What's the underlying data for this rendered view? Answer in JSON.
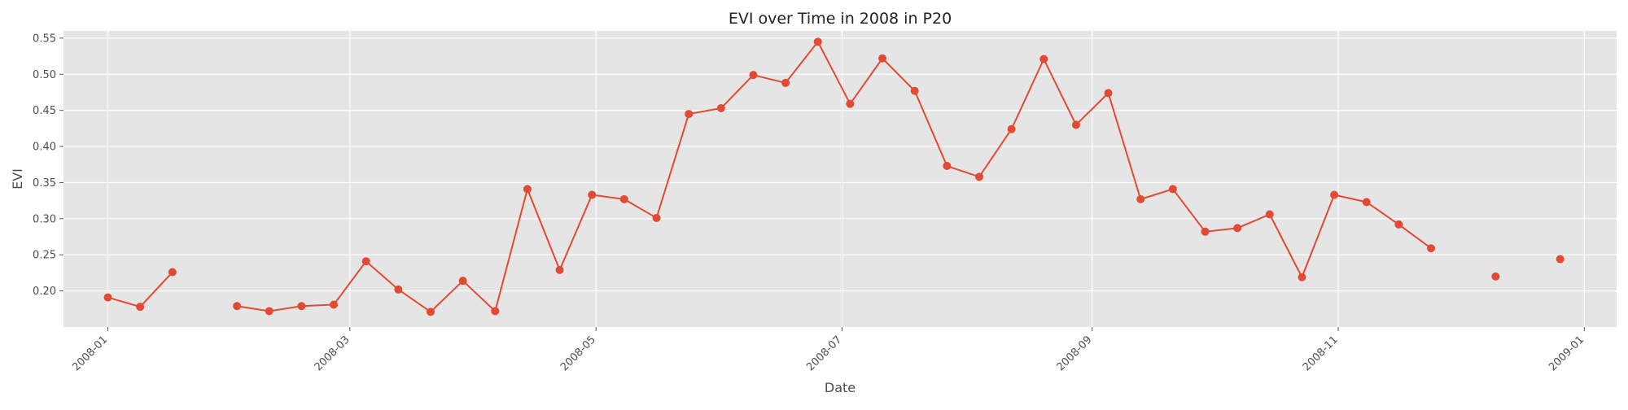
{
  "chart_data": {
    "type": "line",
    "title": "EVI over Time in 2008 in P20",
    "xlabel": "Date",
    "ylabel": "EVI",
    "grid": true,
    "xlim": [
      "2007-12-21",
      "2009-01-09"
    ],
    "ylim": [
      0.15,
      0.56
    ],
    "xticks": [
      "2008-01",
      "2008-03",
      "2008-05",
      "2008-07",
      "2008-09",
      "2008-11",
      "2009-01"
    ],
    "xtick_dates": [
      "2008-01-01",
      "2008-03-01",
      "2008-05-01",
      "2008-07-01",
      "2008-09-01",
      "2008-11-01",
      "2009-01-01"
    ],
    "yticks": [
      "0.20",
      "0.25",
      "0.30",
      "0.35",
      "0.40",
      "0.45",
      "0.50",
      "0.55"
    ],
    "series": [
      {
        "color": "#E24A33",
        "marker": "circle",
        "points": [
          {
            "date": "2008-01-01",
            "value": 0.191
          },
          {
            "date": "2008-01-09",
            "value": 0.178
          },
          {
            "date": "2008-01-17",
            "value": 0.226
          },
          {
            "date": "2008-01-25",
            "value": null
          },
          {
            "date": "2008-02-02",
            "value": 0.179
          },
          {
            "date": "2008-02-10",
            "value": 0.172
          },
          {
            "date": "2008-02-18",
            "value": 0.179
          },
          {
            "date": "2008-02-26",
            "value": 0.181
          },
          {
            "date": "2008-03-05",
            "value": 0.241
          },
          {
            "date": "2008-03-13",
            "value": 0.202
          },
          {
            "date": "2008-03-21",
            "value": 0.171
          },
          {
            "date": "2008-03-29",
            "value": 0.214
          },
          {
            "date": "2008-04-06",
            "value": 0.172
          },
          {
            "date": "2008-04-14",
            "value": 0.341
          },
          {
            "date": "2008-04-22",
            "value": 0.229
          },
          {
            "date": "2008-04-30",
            "value": 0.333
          },
          {
            "date": "2008-05-08",
            "value": 0.327
          },
          {
            "date": "2008-05-16",
            "value": 0.301
          },
          {
            "date": "2008-05-24",
            "value": 0.445
          },
          {
            "date": "2008-06-01",
            "value": 0.453
          },
          {
            "date": "2008-06-09",
            "value": 0.499
          },
          {
            "date": "2008-06-17",
            "value": 0.488
          },
          {
            "date": "2008-06-25",
            "value": 0.545
          },
          {
            "date": "2008-07-03",
            "value": 0.459
          },
          {
            "date": "2008-07-11",
            "value": 0.522
          },
          {
            "date": "2008-07-19",
            "value": 0.477
          },
          {
            "date": "2008-07-27",
            "value": 0.373
          },
          {
            "date": "2008-08-04",
            "value": 0.358
          },
          {
            "date": "2008-08-12",
            "value": 0.424
          },
          {
            "date": "2008-08-20",
            "value": 0.521
          },
          {
            "date": "2008-08-28",
            "value": 0.43
          },
          {
            "date": "2008-09-05",
            "value": 0.474
          },
          {
            "date": "2008-09-13",
            "value": 0.327
          },
          {
            "date": "2008-09-21",
            "value": 0.341
          },
          {
            "date": "2008-09-29",
            "value": 0.282
          },
          {
            "date": "2008-10-07",
            "value": 0.287
          },
          {
            "date": "2008-10-15",
            "value": 0.306
          },
          {
            "date": "2008-10-23",
            "value": 0.219
          },
          {
            "date": "2008-10-31",
            "value": 0.333
          },
          {
            "date": "2008-11-08",
            "value": 0.323
          },
          {
            "date": "2008-11-16",
            "value": 0.292
          },
          {
            "date": "2008-11-24",
            "value": 0.259
          },
          {
            "date": "2008-12-02",
            "value": null
          },
          {
            "date": "2008-12-10",
            "value": 0.22
          },
          {
            "date": "2008-12-18",
            "value": null
          },
          {
            "date": "2008-12-26",
            "value": 0.244
          }
        ]
      }
    ]
  }
}
